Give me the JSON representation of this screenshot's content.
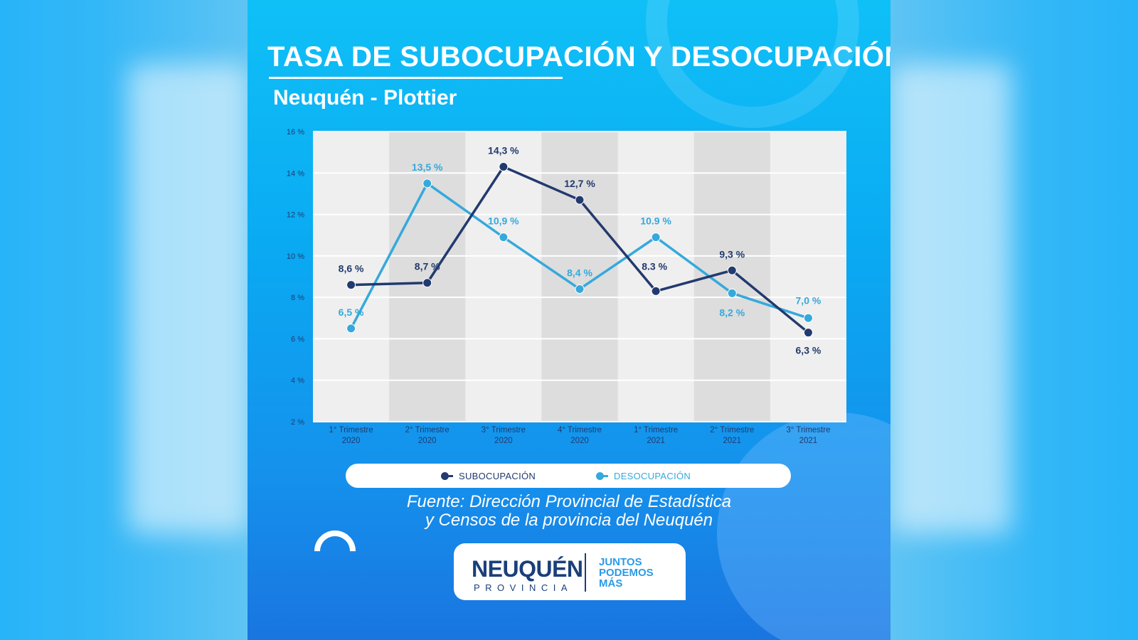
{
  "title": "TASA DE SUBOCUPACIÓN Y DESOCUPACIÓN",
  "subtitle": "Neuquén - Plottier",
  "chart_data": {
    "type": "line",
    "title": "TASA DE SUBOCUPACIÓN Y DESOCUPACIÓN",
    "subtitle": "Neuquén - Plottier",
    "categories": [
      [
        "1° Trimestre",
        "2020"
      ],
      [
        "2° Trimestre",
        "2020"
      ],
      [
        "3° Trimestre",
        "2020"
      ],
      [
        "4° Trimestre",
        "2020"
      ],
      [
        "1° Trimestre",
        "2021"
      ],
      [
        "2° Trimestre",
        "2021"
      ],
      [
        "3° Trimestre",
        "2021"
      ]
    ],
    "y_ticks": [
      "16 %",
      "14 %",
      "12 %",
      "10 %",
      "8 %",
      "6 %",
      "4 %",
      "2 %"
    ],
    "ylim": [
      2,
      16
    ],
    "grid": true,
    "legend_position": "bottom",
    "series": [
      {
        "name": "SUBOCUPACIÓN",
        "color": "#223a6e",
        "values": [
          8.6,
          8.7,
          14.3,
          12.7,
          8.3,
          9.3,
          6.3
        ],
        "labels": [
          "8,6 %",
          "8,7 %",
          "14,3 %",
          "12,7 %",
          "8.3 %",
          "9,3 %",
          "6,3 %"
        ]
      },
      {
        "name": "DESOCUPACIÓN",
        "color": "#35a9dc",
        "values": [
          6.5,
          13.5,
          10.9,
          8.4,
          10.9,
          8.2,
          7.0
        ],
        "labels": [
          "6,5 %",
          "13,5 %",
          "10,9 %",
          "8,4 %",
          "10.9 %",
          "8,2 %",
          "7,0 %"
        ]
      }
    ]
  },
  "legend": {
    "items": [
      {
        "label": "SUBOCUPACIÓN",
        "color": "#223a6e"
      },
      {
        "label": "DESOCUPACIÓN",
        "color": "#35a9dc"
      }
    ]
  },
  "source": {
    "line1": "Fuente: Dirección Provincial de Estadística",
    "line2": "y Censos de la provincia del Neuquén"
  },
  "logo": {
    "main": "NEUQUÉN",
    "sub": "PROVINCIA",
    "slogan1": "JUNTOS",
    "slogan2": "PODEMOS",
    "slogan3": "MÁS"
  }
}
